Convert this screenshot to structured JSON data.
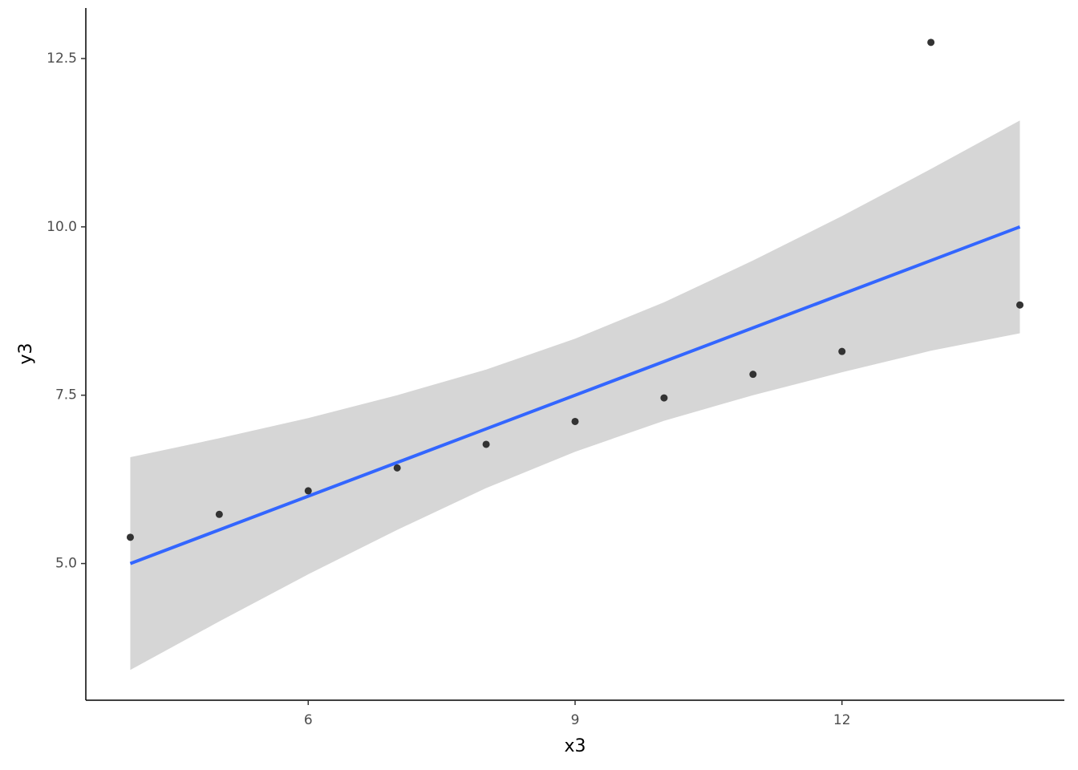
{
  "chart_data": {
    "type": "scatter",
    "x_label": "x3",
    "y_label": "y3",
    "x": [
      10,
      8,
      13,
      9,
      11,
      14,
      6,
      4,
      12,
      7,
      5
    ],
    "y": [
      7.46,
      6.77,
      12.74,
      7.11,
      7.81,
      8.84,
      6.08,
      5.39,
      8.15,
      6.42,
      5.73
    ],
    "point_color": "#333333",
    "fit": {
      "color": "#3366ff",
      "band_color": "#d6d6d6",
      "x": [
        4,
        5,
        6,
        7,
        8,
        9,
        10,
        11,
        12,
        13,
        14
      ],
      "y": [
        5,
        5.5,
        6,
        6.5,
        7,
        7.5,
        8,
        8.5,
        9,
        9.5,
        10
      ],
      "lower": [
        3.42,
        4.14,
        4.84,
        5.5,
        6.12,
        6.66,
        7.12,
        7.5,
        7.84,
        8.16,
        8.42
      ],
      "upper": [
        6.58,
        6.86,
        7.16,
        7.5,
        7.88,
        8.34,
        8.88,
        9.5,
        10.16,
        10.86,
        11.58
      ]
    },
    "xlim": [
      3.5,
      14.5
    ],
    "ylim": [
      2.97,
      13.25
    ],
    "xticks": [
      6,
      9,
      12
    ],
    "yticks": [
      {
        "value": 5,
        "label": "5.0"
      },
      7.5,
      {
        "value": 10,
        "label": "10.0"
      },
      12.5
    ]
  }
}
